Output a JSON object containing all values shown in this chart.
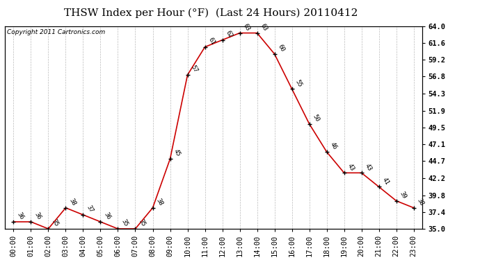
{
  "title": "THSW Index per Hour (°F)  (Last 24 Hours) 20110412",
  "copyright": "Copyright 2011 Cartronics.com",
  "hours": [
    "00:00",
    "01:00",
    "02:00",
    "03:00",
    "04:00",
    "05:00",
    "06:00",
    "07:00",
    "08:00",
    "09:00",
    "10:00",
    "11:00",
    "12:00",
    "13:00",
    "14:00",
    "15:00",
    "16:00",
    "17:00",
    "18:00",
    "19:00",
    "20:00",
    "21:00",
    "22:00",
    "23:00"
  ],
  "values": [
    36,
    36,
    35,
    38,
    37,
    36,
    35,
    35,
    38,
    45,
    57,
    61,
    62,
    63,
    63,
    60,
    55,
    50,
    46,
    43,
    43,
    41,
    39,
    38
  ],
  "ylim": [
    35.0,
    64.0
  ],
  "yticks": [
    35.0,
    37.4,
    39.8,
    42.2,
    44.7,
    47.1,
    49.5,
    51.9,
    54.3,
    56.8,
    59.2,
    61.6,
    64.0
  ],
  "line_color": "#cc0000",
  "marker_color": "#000000",
  "bg_color": "#ffffff",
  "grid_color": "#bbbbbb",
  "title_fontsize": 11,
  "copyright_fontsize": 6.5,
  "label_fontsize": 6.5,
  "tick_fontsize": 7.5
}
